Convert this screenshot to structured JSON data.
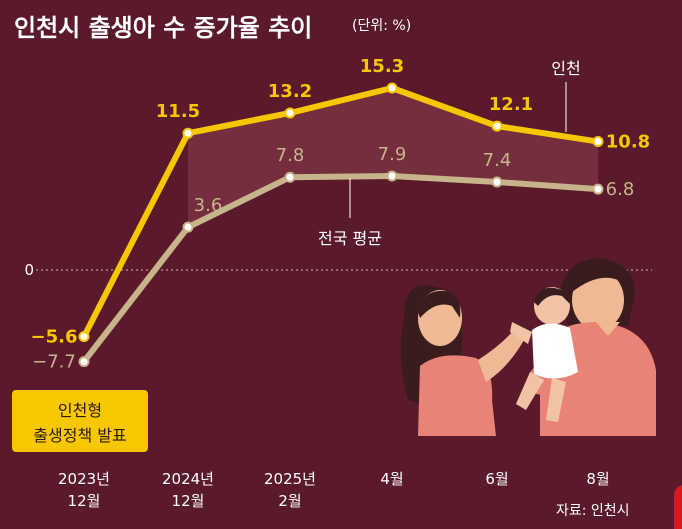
{
  "title": "인천시 출생아 수 증가율 추이",
  "unit": "(단위: %)",
  "source": "자료: 인천시",
  "announcement": [
    "인천형",
    "출생정책 발표"
  ],
  "colors": {
    "background": "#5b1a2b",
    "incheon": "#f7c800",
    "national": "#c8b48a",
    "fill": "#7a3342",
    "text": "#ffffff"
  },
  "chart_data": {
    "type": "line",
    "categories": [
      "2023년 12월",
      "2024년 12월",
      "2025년 2월",
      "4월",
      "6월",
      "8월"
    ],
    "series": [
      {
        "name": "인천",
        "values": [
          -5.6,
          11.5,
          13.2,
          15.3,
          12.1,
          10.8
        ],
        "labels": [
          "−5.6",
          "11.5",
          "13.2",
          "15.3",
          "12.1",
          "10.8"
        ]
      },
      {
        "name": "전국 평균",
        "values": [
          -7.7,
          3.6,
          7.8,
          7.9,
          7.4,
          6.8
        ],
        "labels": [
          "−7.7",
          "3.6",
          "7.8",
          "7.9",
          "7.4",
          "6.8"
        ]
      }
    ],
    "zero_label": "0",
    "ylim": [
      -7.7,
      15.3
    ]
  }
}
